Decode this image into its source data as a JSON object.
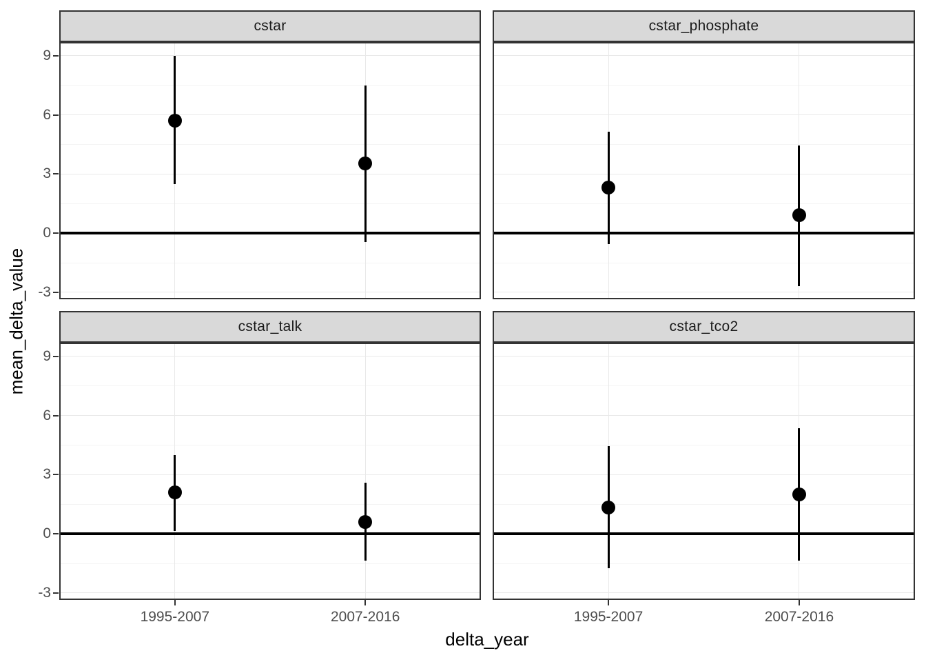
{
  "chart_data": {
    "type": "pointrange",
    "faceted": true,
    "categories": [
      "1995-2007",
      "2007-2016"
    ],
    "xlabel": "delta_year",
    "ylabel": "mean_delta_value",
    "y_major_ticks": [
      9,
      6,
      3,
      0,
      -3
    ],
    "y_minor_ticks": [
      7.5,
      4.5,
      1.5,
      -1.5
    ],
    "ylim": [
      -3.28,
      9.62
    ],
    "zero_line": 0,
    "grid": true,
    "legend": "none",
    "facets": [
      {
        "label": "cstar",
        "points": [
          {
            "x": "1995-2007",
            "y": 5.7,
            "ymin": 2.5,
            "ymax": 9.0
          },
          {
            "x": "2007-2016",
            "y": 3.55,
            "ymin": -0.45,
            "ymax": 7.5
          }
        ]
      },
      {
        "label": "cstar_phosphate",
        "points": [
          {
            "x": "1995-2007",
            "y": 2.3,
            "ymin": -0.55,
            "ymax": 5.15
          },
          {
            "x": "2007-2016",
            "y": 0.9,
            "ymin": -2.7,
            "ymax": 4.45
          }
        ]
      },
      {
        "label": "cstar_talk",
        "points": [
          {
            "x": "1995-2007",
            "y": 2.1,
            "ymin": 0.15,
            "ymax": 4.0
          },
          {
            "x": "2007-2016",
            "y": 0.6,
            "ymin": -1.35,
            "ymax": 2.6
          }
        ]
      },
      {
        "label": "cstar_tco2",
        "points": [
          {
            "x": "1995-2007",
            "y": 1.35,
            "ymin": -1.75,
            "ymax": 4.45
          },
          {
            "x": "2007-2016",
            "y": 2.0,
            "ymin": -1.35,
            "ymax": 5.35
          }
        ]
      }
    ],
    "colors": {
      "point": "#000000",
      "range_bar": "#000000",
      "zero_line": "#000000",
      "strip_background": "#d9d9d9",
      "panel_border": "#333333",
      "grid_major": "#e9e9e9",
      "grid_minor": "#f4f4f4",
      "axis_text": "#4d4d4d",
      "title_text": "#000000"
    }
  }
}
